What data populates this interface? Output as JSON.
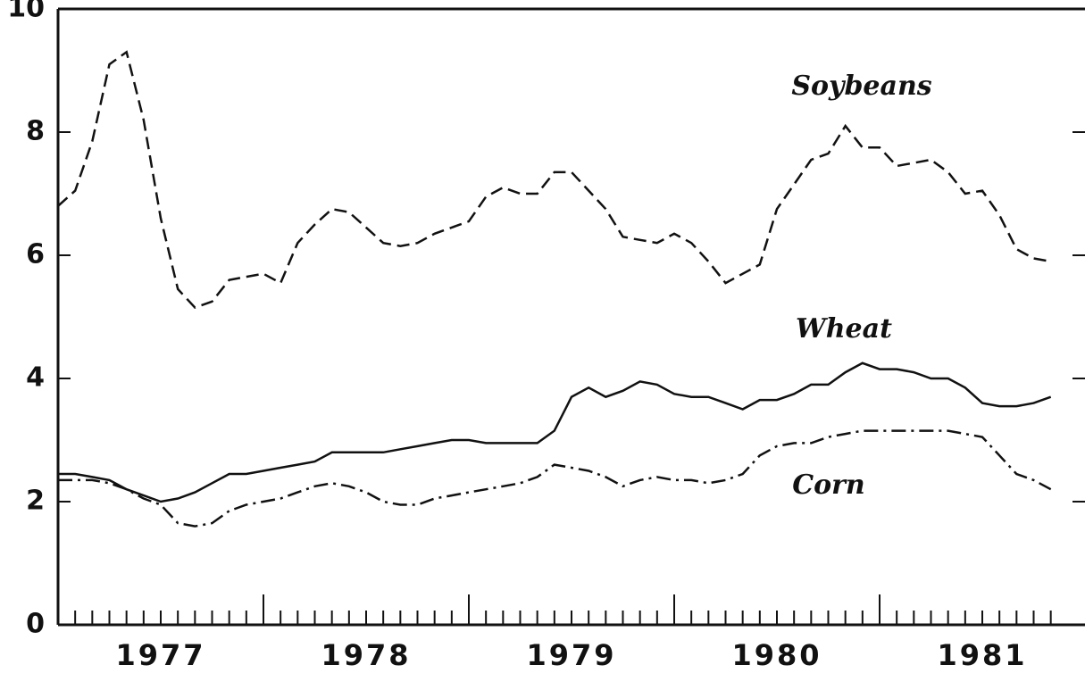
{
  "chart_data": {
    "type": "line",
    "categories": [
      null,
      null,
      null,
      null,
      null,
      null,
      "1977",
      null,
      null,
      null,
      null,
      null,
      null,
      null,
      null,
      null,
      null,
      null,
      "1978",
      null,
      null,
      null,
      null,
      null,
      null,
      null,
      null,
      null,
      null,
      null,
      "1979",
      null,
      null,
      null,
      null,
      null,
      null,
      null,
      null,
      null,
      null,
      null,
      "1980",
      null,
      null,
      null,
      null,
      null,
      null,
      null,
      null,
      null,
      null,
      null,
      "1981",
      null,
      null,
      null,
      null
    ],
    "series": [
      {
        "name": "Soybeans",
        "color": "#111111",
        "style": "dashed",
        "values": [
          6.8,
          7.05,
          7.85,
          9.1,
          9.3,
          8.2,
          6.6,
          5.45,
          5.15,
          5.25,
          5.6,
          5.65,
          5.7,
          5.55,
          6.2,
          6.5,
          6.75,
          6.7,
          6.45,
          6.2,
          6.15,
          6.2,
          6.35,
          6.45,
          6.55,
          6.95,
          7.1,
          7.0,
          7.0,
          7.35,
          7.35,
          7.05,
          6.75,
          6.3,
          6.25,
          6.2,
          6.35,
          6.2,
          5.9,
          5.55,
          5.7,
          5.85,
          6.75,
          7.15,
          7.55,
          7.65,
          8.1,
          7.75,
          7.75,
          7.45,
          7.5,
          7.55,
          7.35,
          7.0,
          7.05,
          6.65,
          6.1,
          5.95,
          5.9
        ]
      },
      {
        "name": "Wheat",
        "color": "#111111",
        "style": "solid",
        "values": [
          2.45,
          2.45,
          2.4,
          2.35,
          2.2,
          2.1,
          2.0,
          2.05,
          2.15,
          2.3,
          2.45,
          2.45,
          2.5,
          2.55,
          2.6,
          2.65,
          2.8,
          2.8,
          2.8,
          2.8,
          2.85,
          2.9,
          2.95,
          3.0,
          3.0,
          2.95,
          2.95,
          2.95,
          2.95,
          3.15,
          3.7,
          3.85,
          3.7,
          3.8,
          3.95,
          3.9,
          3.75,
          3.7,
          3.7,
          3.6,
          3.5,
          3.65,
          3.65,
          3.75,
          3.9,
          3.9,
          4.1,
          4.25,
          4.15,
          4.15,
          4.1,
          4.0,
          4.0,
          3.85,
          3.6,
          3.55,
          3.55,
          3.6,
          3.7
        ]
      },
      {
        "name": "Corn",
        "color": "#111111",
        "style": "dashdot",
        "values": [
          2.35,
          2.35,
          2.35,
          2.3,
          2.2,
          2.05,
          1.95,
          1.65,
          1.6,
          1.65,
          1.85,
          1.95,
          2.0,
          2.05,
          2.15,
          2.25,
          2.3,
          2.25,
          2.15,
          2.0,
          1.95,
          1.95,
          2.05,
          2.1,
          2.15,
          2.2,
          2.25,
          2.3,
          2.4,
          2.6,
          2.55,
          2.5,
          2.4,
          2.25,
          2.35,
          2.4,
          2.35,
          2.35,
          2.3,
          2.35,
          2.45,
          2.75,
          2.9,
          2.95,
          2.95,
          3.05,
          3.1,
          3.15,
          3.15,
          3.15,
          3.15,
          3.15,
          3.15,
          3.1,
          3.05,
          2.75,
          2.45,
          2.35,
          2.2
        ]
      }
    ],
    "ylim": [
      0,
      10
    ],
    "yticks": [
      0,
      2,
      4,
      6,
      8,
      10
    ],
    "grid": false
  }
}
